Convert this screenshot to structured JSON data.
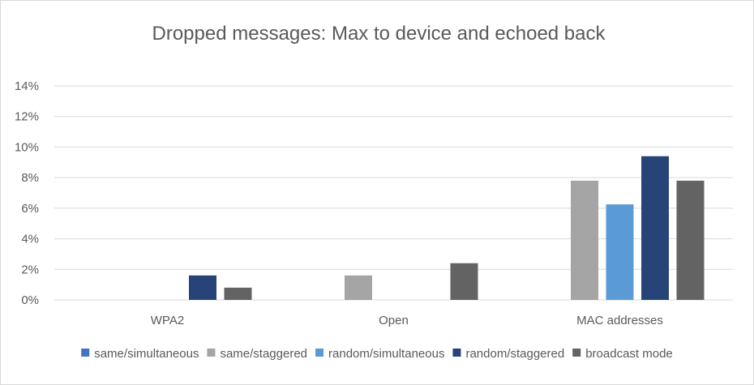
{
  "chart_data": {
    "type": "bar",
    "title": "Dropped messages: Max to device and echoed back",
    "xlabel": "",
    "ylabel": "",
    "categories": [
      "WPA2",
      "Open",
      "MAC addresses"
    ],
    "ylim": [
      0,
      14
    ],
    "y_ticks": [
      0,
      2,
      4,
      6,
      8,
      10,
      12,
      14
    ],
    "y_tick_format": "percent",
    "grid": true,
    "legend_position": "bottom",
    "series": [
      {
        "name": "same/simultaneous",
        "color": "#4472c4",
        "values": [
          0,
          0,
          0
        ]
      },
      {
        "name": "same/staggered",
        "color": "#a5a5a5",
        "values": [
          0,
          1.6,
          7.8
        ]
      },
      {
        "name": "random/simultaneous",
        "color": "#5b9bd5",
        "values": [
          0,
          0,
          6.25
        ]
      },
      {
        "name": "random/staggered",
        "color": "#264478",
        "values": [
          1.6,
          0,
          9.4
        ]
      },
      {
        "name": "broadcast mode",
        "color": "#636363",
        "values": [
          0.8,
          2.4,
          7.8
        ]
      }
    ]
  }
}
